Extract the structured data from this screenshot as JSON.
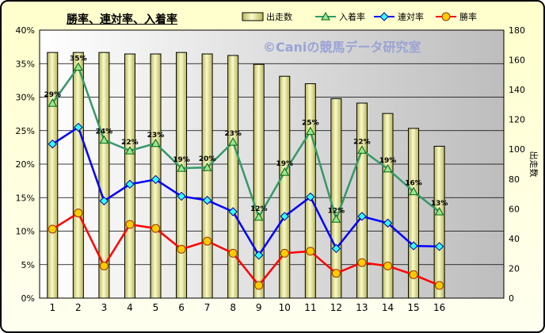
{
  "title": "勝率、連対率、入着率",
  "watermark": "©Caniの競馬データ研究室",
  "chart_data": {
    "type": "bar+line",
    "categories": [
      "1",
      "2",
      "3",
      "4",
      "5",
      "6",
      "7",
      "8",
      "9",
      "10",
      "11",
      "12",
      "13",
      "14",
      "15",
      "16"
    ],
    "y_left": {
      "min": 0,
      "max": 40,
      "ticks": [
        "0%",
        "5%",
        "10%",
        "15%",
        "20%",
        "25%",
        "30%",
        "35%",
        "40%"
      ]
    },
    "y_right": {
      "min": 0,
      "max": 180,
      "label": "出走数",
      "ticks": [
        "0",
        "20",
        "40",
        "60",
        "80",
        "100",
        "120",
        "140",
        "160",
        "180"
      ]
    },
    "legend_position": "top",
    "series": [
      {
        "name": "出走数",
        "type": "bar",
        "axis": "right",
        "color": "#e6e6a0",
        "values": [
          165,
          165,
          165,
          164,
          164,
          165,
          164,
          163,
          157,
          149,
          144,
          134,
          131,
          124,
          114,
          102
        ]
      },
      {
        "name": "入着率",
        "type": "line",
        "axis": "left",
        "color": "#339966",
        "marker": "triangle",
        "values": [
          29.1,
          34.5,
          23.6,
          22.0,
          23.1,
          19.4,
          19.5,
          23.3,
          12.1,
          18.8,
          24.9,
          11.8,
          22.1,
          19.3,
          15.9,
          12.9
        ],
        "labels": [
          "29%",
          "35%",
          "24%",
          "22%",
          "23%",
          "19%",
          "20%",
          "23%",
          "12%",
          "19%",
          "25%",
          "12%",
          "22%",
          "19%",
          "16%",
          "13%"
        ]
      },
      {
        "name": "連対率",
        "type": "line",
        "axis": "left",
        "color": "#0000ff",
        "marker": "diamond",
        "values": [
          23.0,
          25.5,
          14.5,
          17.0,
          17.7,
          15.2,
          14.6,
          12.9,
          6.4,
          12.2,
          15.1,
          7.4,
          12.2,
          11.2,
          7.8,
          7.7
        ]
      },
      {
        "name": "勝率",
        "type": "line",
        "axis": "left",
        "color": "#ff0000",
        "marker": "circle",
        "values": [
          10.3,
          12.7,
          4.8,
          11.0,
          10.4,
          7.3,
          8.5,
          6.7,
          1.9,
          6.7,
          7.0,
          3.7,
          5.3,
          4.8,
          3.5,
          1.9
        ]
      }
    ]
  }
}
